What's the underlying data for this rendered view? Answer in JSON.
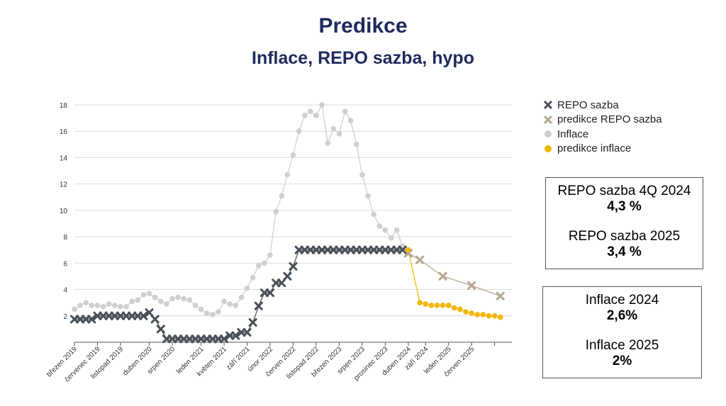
{
  "header": {
    "title": "Predikce",
    "subtitle": "Inflace, REPO sazba, hypo"
  },
  "legend": [
    {
      "label": "REPO sazba",
      "marker": "x",
      "color": "#4a5058"
    },
    {
      "label": "predikce REPO sazba",
      "marker": "x",
      "color": "#b5a68f"
    },
    {
      "label": "Inflace",
      "marker": "dot",
      "color": "#cfcfcf"
    },
    {
      "label": "predikce inflace",
      "marker": "dot",
      "color": "#f2b705"
    }
  ],
  "boxes": {
    "repo": {
      "label1": "REPO sazba 4Q 2024",
      "value1": "4,3 %",
      "label2": "REPO sazba 2025",
      "value2": "3,4 %"
    },
    "inflation": {
      "label1": "Inflace 2024",
      "value1": "2,6%",
      "label2": "Inflace 2025",
      "value2": "2%"
    }
  },
  "chart_data": {
    "type": "scatter",
    "ylim": [
      0,
      18
    ],
    "yticks": [
      2,
      4,
      6,
      8,
      10,
      12,
      14,
      16,
      18
    ],
    "grid": true,
    "xlim": [
      0,
      76
    ],
    "x_tick_positions": [
      0,
      4,
      8,
      13,
      17,
      22,
      26,
      30,
      34,
      38,
      42,
      46,
      50,
      54,
      58,
      61,
      65,
      69,
      73
    ],
    "x_tick_labels": [
      "březen 2019",
      "červenec 2019",
      "listopad 2019",
      "duben 2020",
      "srpen 2020",
      "leden 2021",
      "květen 2021",
      "září 2021",
      "únor 2022",
      "červen 2022",
      "listopad 2022",
      "březen 2023",
      "srpen 2023",
      "prosinec 2023",
      "duben 2024",
      "září 2024",
      "leden 2025",
      "červen 2025",
      ""
    ],
    "series": [
      {
        "name": "Inflace",
        "color": "#cfcfcf",
        "marker": "dot",
        "points": [
          [
            0,
            2.5
          ],
          [
            1,
            2.8
          ],
          [
            2,
            3.0
          ],
          [
            3,
            2.8
          ],
          [
            4,
            2.8
          ],
          [
            5,
            2.7
          ],
          [
            6,
            2.9
          ],
          [
            7,
            2.8
          ],
          [
            8,
            2.7
          ],
          [
            9,
            2.7
          ],
          [
            10,
            3.1
          ],
          [
            11,
            3.2
          ],
          [
            12,
            3.6
          ],
          [
            13,
            3.7
          ],
          [
            14,
            3.4
          ],
          [
            15,
            3.1
          ],
          [
            16,
            2.9
          ],
          [
            17,
            3.3
          ],
          [
            18,
            3.4
          ],
          [
            19,
            3.3
          ],
          [
            20,
            3.2
          ],
          [
            21,
            2.8
          ],
          [
            22,
            2.5
          ],
          [
            23,
            2.2
          ],
          [
            24,
            2.1
          ],
          [
            25,
            2.3
          ],
          [
            26,
            3.1
          ],
          [
            27,
            2.9
          ],
          [
            28,
            2.8
          ],
          [
            29,
            3.4
          ],
          [
            30,
            4.1
          ],
          [
            31,
            4.9
          ],
          [
            32,
            5.8
          ],
          [
            33,
            6.0
          ],
          [
            34,
            6.6
          ],
          [
            35,
            9.9
          ],
          [
            36,
            11.1
          ],
          [
            37,
            12.7
          ],
          [
            38,
            14.2
          ],
          [
            39,
            16.0
          ],
          [
            40,
            17.2
          ],
          [
            41,
            17.5
          ],
          [
            42,
            17.2
          ],
          [
            43,
            18.0
          ],
          [
            44,
            15.1
          ],
          [
            45,
            16.2
          ],
          [
            46,
            15.8
          ],
          [
            47,
            17.5
          ],
          [
            48,
            16.8
          ],
          [
            49,
            15.0
          ],
          [
            50,
            12.7
          ],
          [
            51,
            11.1
          ],
          [
            52,
            9.7
          ],
          [
            53,
            8.8
          ],
          [
            54,
            8.5
          ],
          [
            55,
            7.9
          ],
          [
            56,
            8.5
          ],
          [
            57,
            7.3
          ]
        ]
      },
      {
        "name": "REPO sazba",
        "color": "#4a5058",
        "marker": "x",
        "points": [
          [
            0,
            1.75
          ],
          [
            1,
            1.75
          ],
          [
            2,
            1.75
          ],
          [
            3,
            1.75
          ],
          [
            4,
            2.0
          ],
          [
            5,
            2.0
          ],
          [
            6,
            2.0
          ],
          [
            7,
            2.0
          ],
          [
            8,
            2.0
          ],
          [
            9,
            2.0
          ],
          [
            10,
            2.0
          ],
          [
            11,
            2.0
          ],
          [
            12,
            2.0
          ],
          [
            13,
            2.25
          ],
          [
            14,
            1.75
          ],
          [
            15,
            1.0
          ],
          [
            16,
            0.25
          ],
          [
            17,
            0.25
          ],
          [
            18,
            0.25
          ],
          [
            19,
            0.25
          ],
          [
            20,
            0.25
          ],
          [
            21,
            0.25
          ],
          [
            22,
            0.25
          ],
          [
            23,
            0.25
          ],
          [
            24,
            0.25
          ],
          [
            25,
            0.25
          ],
          [
            26,
            0.25
          ],
          [
            27,
            0.5
          ],
          [
            28,
            0.5
          ],
          [
            29,
            0.75
          ],
          [
            30,
            0.75
          ],
          [
            31,
            1.5
          ],
          [
            32,
            2.75
          ],
          [
            33,
            3.75
          ],
          [
            34,
            3.75
          ],
          [
            35,
            4.5
          ],
          [
            36,
            4.5
          ],
          [
            37,
            5.0
          ],
          [
            38,
            5.75
          ],
          [
            39,
            7.0
          ],
          [
            40,
            7.0
          ],
          [
            41,
            7.0
          ],
          [
            42,
            7.0
          ],
          [
            43,
            7.0
          ],
          [
            44,
            7.0
          ],
          [
            45,
            7.0
          ],
          [
            46,
            7.0
          ],
          [
            47,
            7.0
          ],
          [
            48,
            7.0
          ],
          [
            49,
            7.0
          ],
          [
            50,
            7.0
          ],
          [
            51,
            7.0
          ],
          [
            52,
            7.0
          ],
          [
            53,
            7.0
          ],
          [
            54,
            7.0
          ],
          [
            55,
            7.0
          ],
          [
            56,
            7.0
          ],
          [
            57,
            7.0
          ],
          [
            58,
            6.75
          ]
        ]
      },
      {
        "name": "predikce REPO sazba",
        "color": "#b5a68f",
        "marker": "x",
        "points": [
          [
            58,
            6.75
          ],
          [
            60,
            6.25
          ],
          [
            64,
            5.0
          ],
          [
            69,
            4.3
          ],
          [
            74,
            3.5
          ]
        ]
      },
      {
        "name": "predikce inflace",
        "color": "#f2b705",
        "marker": "dot",
        "points": [
          [
            58,
            7.0
          ],
          [
            60,
            3.0
          ],
          [
            61,
            2.9
          ],
          [
            62,
            2.8
          ],
          [
            63,
            2.8
          ],
          [
            64,
            2.8
          ],
          [
            65,
            2.8
          ],
          [
            66,
            2.6
          ],
          [
            67,
            2.5
          ],
          [
            68,
            2.3
          ],
          [
            69,
            2.2
          ],
          [
            70,
            2.1
          ],
          [
            71,
            2.1
          ],
          [
            72,
            2.0
          ],
          [
            73,
            2.0
          ],
          [
            74,
            1.9
          ]
        ]
      }
    ]
  }
}
